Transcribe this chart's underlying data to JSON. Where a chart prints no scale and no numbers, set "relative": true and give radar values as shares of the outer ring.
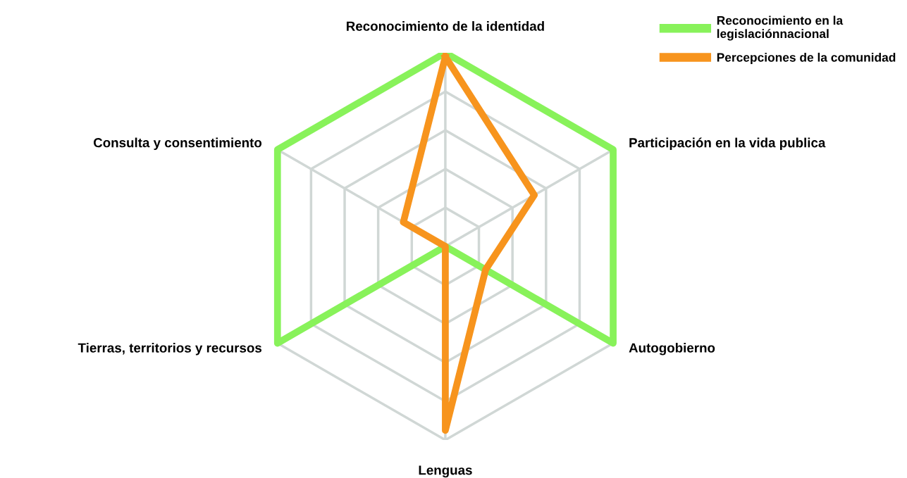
{
  "chart_data": {
    "type": "radar",
    "relative": true,
    "grid": true,
    "legend": "top right",
    "categories": [
      "Reconocimiento de la identidad",
      "Participación en la vida publica",
      "Autogobierno",
      "Lenguas",
      "Tierras, territorios y recursos",
      "Consulta y consentimiento"
    ],
    "series": [
      {
        "name": "Reconocimiento en la\nlegislaciónnacional",
        "color": "#88f25a",
        "values": [
          1,
          1,
          1,
          0,
          1,
          1
        ]
      },
      {
        "name": "Percepciones de la comunidad",
        "color": "#f7941d",
        "values": [
          0.98,
          0.53,
          0.24,
          0.95,
          0,
          0.25
        ]
      }
    ]
  }
}
